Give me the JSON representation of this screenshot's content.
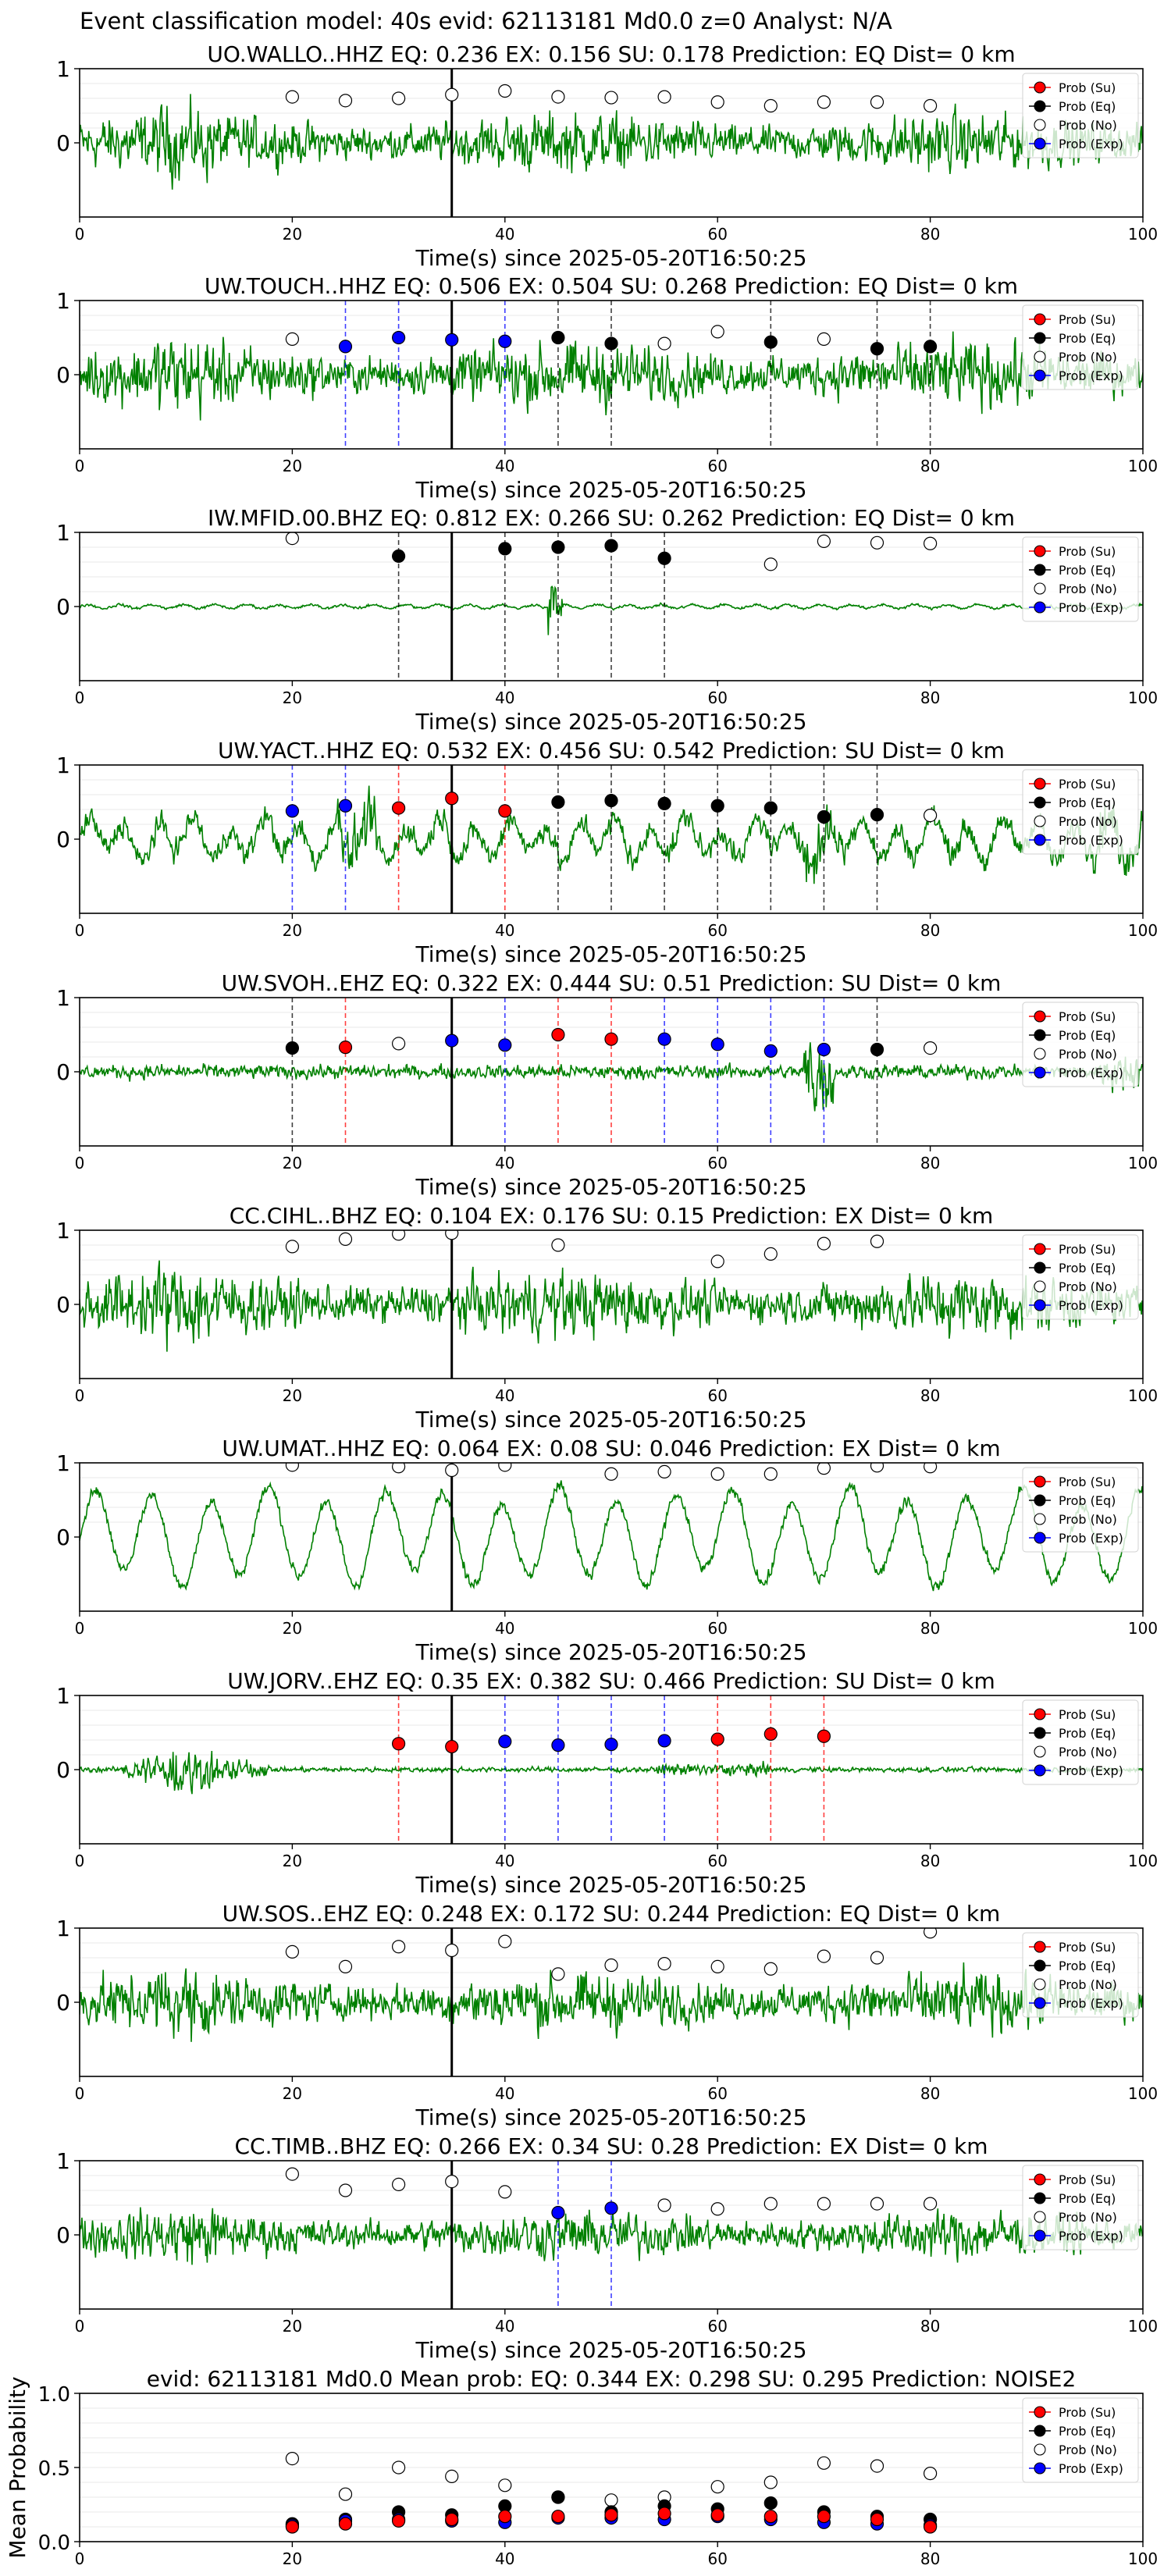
{
  "suptitle": "Event classification model: 40s evid: 62113181 Md0.0 z=0 Analyst: N/A",
  "colors": {
    "trace": "#008000",
    "su": "#ff0000",
    "eq": "#000000",
    "no": "#ffffff",
    "exp": "#0000ff",
    "event_line": "#000000"
  },
  "legend_labels": [
    "Prob (Su)",
    "Prob (Eq)",
    "Prob (No)",
    "Prob (Exp)"
  ],
  "chart_data": [
    {
      "type": "line",
      "title": "UO.WALLO..HHZ   EQ: 0.236  EX: 0.156  SU: 0.178   Prediction: EQ    Dist= 0 km",
      "xlabel": "Time(s) since 2025-05-20T16:50:25",
      "xlim": [
        0,
        100
      ],
      "ylim": [
        -1,
        1
      ],
      "xticks": [
        0,
        20,
        40,
        60,
        80,
        100
      ],
      "yticks": [
        0,
        1
      ],
      "legend": "right",
      "trace_style": "dense-noise",
      "trace_amp": 0.55,
      "event_line_x": 35,
      "dashed": [],
      "series": [
        {
          "name": "Prob (No)",
          "x": [
            20,
            25,
            30,
            35,
            40,
            45,
            50,
            55,
            60,
            65,
            70,
            75,
            80
          ],
          "y": [
            0.62,
            0.57,
            0.6,
            0.65,
            0.7,
            0.62,
            0.61,
            0.62,
            0.55,
            0.5,
            0.55,
            0.55,
            0.5
          ]
        }
      ]
    },
    {
      "type": "line",
      "title": "UW.TOUCH..HHZ   EQ: 0.506  EX: 0.504  SU: 0.268   Prediction: EQ    Dist= 0 km",
      "xlabel": "Time(s) since 2025-05-20T16:50:25",
      "xlim": [
        0,
        100
      ],
      "ylim": [
        -1,
        1
      ],
      "xticks": [
        0,
        20,
        40,
        60,
        80,
        100
      ],
      "yticks": [
        0,
        1
      ],
      "legend": "right",
      "trace_style": "dense-noise",
      "trace_amp": 0.6,
      "event_line_x": 35,
      "dashed": [
        {
          "x": 25,
          "c": "exp"
        },
        {
          "x": 30,
          "c": "exp"
        },
        {
          "x": 40,
          "c": "exp"
        },
        {
          "x": 45,
          "c": "eq"
        },
        {
          "x": 50,
          "c": "eq"
        },
        {
          "x": 65,
          "c": "eq"
        },
        {
          "x": 75,
          "c": "eq"
        },
        {
          "x": 80,
          "c": "eq"
        }
      ],
      "series": [
        {
          "name": "Prob (No)",
          "x": [
            20,
            55,
            60,
            70
          ],
          "y": [
            0.48,
            0.42,
            0.58,
            0.48
          ]
        },
        {
          "name": "Prob (Exp)",
          "x": [
            25,
            30,
            35,
            40
          ],
          "y": [
            0.38,
            0.5,
            0.47,
            0.45
          ]
        },
        {
          "name": "Prob (Eq)",
          "x": [
            45,
            50,
            65,
            75,
            80
          ],
          "y": [
            0.5,
            0.42,
            0.44,
            0.35,
            0.38
          ]
        }
      ]
    },
    {
      "type": "line",
      "title": "IW.MFID.00.BHZ   EQ: 0.812  EX: 0.266  SU: 0.262   Prediction: EQ    Dist= 0 km",
      "xlabel": "Time(s) since 2025-05-20T16:50:25",
      "xlim": [
        0,
        100
      ],
      "ylim": [
        -1,
        1
      ],
      "xticks": [
        0,
        20,
        40,
        60,
        80,
        100
      ],
      "yticks": [
        0,
        1
      ],
      "legend": "right",
      "trace_style": "quiet-spike",
      "trace_amp": 0.05,
      "event_line_x": 35,
      "dashed": [
        {
          "x": 30,
          "c": "eq"
        },
        {
          "x": 40,
          "c": "eq"
        },
        {
          "x": 45,
          "c": "eq"
        },
        {
          "x": 50,
          "c": "eq"
        },
        {
          "x": 55,
          "c": "eq"
        }
      ],
      "series": [
        {
          "name": "Prob (No)",
          "x": [
            20,
            65,
            70,
            75,
            80
          ],
          "y": [
            0.92,
            0.57,
            0.88,
            0.86,
            0.85
          ]
        },
        {
          "name": "Prob (Eq)",
          "x": [
            30,
            40,
            45,
            50,
            55
          ],
          "y": [
            0.68,
            0.78,
            0.8,
            0.82,
            0.65
          ]
        }
      ]
    },
    {
      "type": "line",
      "title": "UW.YACT..HHZ   EQ: 0.532  EX: 0.456  SU: 0.542   Prediction: SU    Dist= 0 km",
      "xlabel": "Time(s) since 2025-05-20T16:50:25",
      "xlim": [
        0,
        100
      ],
      "ylim": [
        -1,
        1
      ],
      "xticks": [
        0,
        20,
        40,
        60,
        80,
        100
      ],
      "yticks": [
        0,
        1
      ],
      "legend": "right",
      "trace_style": "wavy",
      "trace_amp": 0.35,
      "event_line_x": 35,
      "dashed": [
        {
          "x": 20,
          "c": "exp"
        },
        {
          "x": 25,
          "c": "exp"
        },
        {
          "x": 30,
          "c": "su"
        },
        {
          "x": 35,
          "c": "su"
        },
        {
          "x": 40,
          "c": "su"
        },
        {
          "x": 45,
          "c": "eq"
        },
        {
          "x": 50,
          "c": "eq"
        },
        {
          "x": 55,
          "c": "eq"
        },
        {
          "x": 60,
          "c": "eq"
        },
        {
          "x": 65,
          "c": "eq"
        },
        {
          "x": 70,
          "c": "eq"
        },
        {
          "x": 75,
          "c": "eq"
        }
      ],
      "series": [
        {
          "name": "Prob (Exp)",
          "x": [
            20,
            25
          ],
          "y": [
            0.38,
            0.45
          ]
        },
        {
          "name": "Prob (Su)",
          "x": [
            30,
            35,
            40
          ],
          "y": [
            0.42,
            0.55,
            0.38
          ]
        },
        {
          "name": "Prob (Eq)",
          "x": [
            45,
            50,
            55,
            60,
            65,
            70,
            75
          ],
          "y": [
            0.5,
            0.52,
            0.48,
            0.45,
            0.42,
            0.3,
            0.33
          ]
        },
        {
          "name": "Prob (No)",
          "x": [
            80
          ],
          "y": [
            0.32
          ]
        }
      ]
    },
    {
      "type": "line",
      "title": "UW.SVOH..EHZ   EQ: 0.322  EX: 0.444  SU: 0.51   Prediction: SU    Dist= 0 km",
      "xlabel": "Time(s) since 2025-05-20T16:50:25",
      "xlim": [
        0,
        100
      ],
      "ylim": [
        -1,
        1
      ],
      "xticks": [
        0,
        20,
        40,
        60,
        80,
        100
      ],
      "yticks": [
        0,
        1
      ],
      "legend": "right",
      "trace_style": "low-noise",
      "trace_amp": 0.15,
      "event_line_x": 35,
      "dashed": [
        {
          "x": 20,
          "c": "eq"
        },
        {
          "x": 25,
          "c": "su"
        },
        {
          "x": 40,
          "c": "exp"
        },
        {
          "x": 45,
          "c": "su"
        },
        {
          "x": 50,
          "c": "su"
        },
        {
          "x": 55,
          "c": "exp"
        },
        {
          "x": 60,
          "c": "exp"
        },
        {
          "x": 65,
          "c": "exp"
        },
        {
          "x": 70,
          "c": "exp"
        },
        {
          "x": 75,
          "c": "eq"
        }
      ],
      "series": [
        {
          "name": "Prob (Eq)",
          "x": [
            20,
            75
          ],
          "y": [
            0.32,
            0.3
          ]
        },
        {
          "name": "Prob (Su)",
          "x": [
            25,
            45,
            50
          ],
          "y": [
            0.33,
            0.5,
            0.44
          ]
        },
        {
          "name": "Prob (No)",
          "x": [
            30,
            80
          ],
          "y": [
            0.38,
            0.32
          ]
        },
        {
          "name": "Prob (Exp)",
          "x": [
            35,
            40,
            55,
            60,
            65,
            70
          ],
          "y": [
            0.42,
            0.36,
            0.44,
            0.37,
            0.28,
            0.3
          ]
        }
      ]
    },
    {
      "type": "line",
      "title": "CC.CIHL..BHZ   EQ: 0.104  EX: 0.176  SU: 0.15   Prediction: EX    Dist= 0 km",
      "xlabel": "Time(s) since 2025-05-20T16:50:25",
      "xlim": [
        0,
        100
      ],
      "ylim": [
        -1,
        1
      ],
      "xticks": [
        0,
        20,
        40,
        60,
        80,
        100
      ],
      "yticks": [
        0,
        1
      ],
      "legend": "right",
      "trace_style": "dense-noise",
      "trace_amp": 0.6,
      "event_line_x": 35,
      "dashed": [],
      "series": [
        {
          "name": "Prob (No)",
          "x": [
            20,
            25,
            30,
            35,
            45,
            60,
            65,
            70,
            75
          ],
          "y": [
            0.78,
            0.88,
            0.95,
            0.96,
            0.8,
            0.58,
            0.68,
            0.82,
            0.85
          ]
        }
      ]
    },
    {
      "type": "line",
      "title": "UW.UMAT..HHZ   EQ: 0.064  EX: 0.08  SU: 0.046   Prediction: EX    Dist= 0 km",
      "xlabel": "Time(s) since 2025-05-20T16:50:25",
      "xlim": [
        0,
        100
      ],
      "ylim": [
        -1,
        1
      ],
      "xticks": [
        0,
        20,
        40,
        60,
        80,
        100
      ],
      "yticks": [
        0,
        1
      ],
      "legend": "right",
      "trace_style": "big-wave",
      "trace_amp": 0.65,
      "event_line_x": 35,
      "dashed": [],
      "series": [
        {
          "name": "Prob (No)",
          "x": [
            20,
            30,
            35,
            40,
            50,
            55,
            60,
            65,
            70,
            75,
            80
          ],
          "y": [
            0.97,
            0.95,
            0.9,
            0.97,
            0.85,
            0.88,
            0.85,
            0.85,
            0.93,
            0.96,
            0.95
          ]
        }
      ]
    },
    {
      "type": "line",
      "title": "UW.JORV..EHZ   EQ: 0.35  EX: 0.382  SU: 0.466   Prediction: SU    Dist= 0 km",
      "xlabel": "Time(s) since 2025-05-20T16:50:25",
      "xlim": [
        0,
        100
      ],
      "ylim": [
        -1,
        1
      ],
      "xticks": [
        0,
        20,
        40,
        60,
        80,
        100
      ],
      "yticks": [
        0,
        1
      ],
      "legend": "right",
      "trace_style": "early-burst",
      "trace_amp": 0.08,
      "event_line_x": 35,
      "dashed": [
        {
          "x": 30,
          "c": "su"
        },
        {
          "x": 40,
          "c": "exp"
        },
        {
          "x": 45,
          "c": "exp"
        },
        {
          "x": 50,
          "c": "exp"
        },
        {
          "x": 55,
          "c": "exp"
        },
        {
          "x": 60,
          "c": "su"
        },
        {
          "x": 65,
          "c": "su"
        },
        {
          "x": 70,
          "c": "su"
        }
      ],
      "series": [
        {
          "name": "Prob (Su)",
          "x": [
            30,
            35,
            60,
            65,
            70
          ],
          "y": [
            0.35,
            0.31,
            0.41,
            0.48,
            0.45
          ]
        },
        {
          "name": "Prob (Exp)",
          "x": [
            40,
            45,
            50,
            55
          ],
          "y": [
            0.38,
            0.33,
            0.34,
            0.39
          ]
        }
      ]
    },
    {
      "type": "line",
      "title": "UW.SOS..EHZ   EQ: 0.248  EX: 0.172  SU: 0.244   Prediction: EQ    Dist= 0 km",
      "xlabel": "Time(s) since 2025-05-20T16:50:25",
      "xlim": [
        0,
        100
      ],
      "ylim": [
        -1,
        1
      ],
      "xticks": [
        0,
        20,
        40,
        60,
        80,
        100
      ],
      "yticks": [
        0,
        1
      ],
      "legend": "right",
      "trace_style": "dense-noise",
      "trace_amp": 0.55,
      "event_line_x": 35,
      "dashed": [],
      "series": [
        {
          "name": "Prob (No)",
          "x": [
            20,
            25,
            30,
            35,
            40,
            45,
            50,
            55,
            60,
            65,
            70,
            75,
            80
          ],
          "y": [
            0.68,
            0.48,
            0.75,
            0.7,
            0.82,
            0.38,
            0.5,
            0.52,
            0.48,
            0.45,
            0.62,
            0.6,
            0.95
          ]
        }
      ]
    },
    {
      "type": "line",
      "title": "CC.TIMB..BHZ   EQ: 0.266  EX: 0.34  SU: 0.28   Prediction: EX    Dist= 0 km",
      "xlabel": "Time(s) since 2025-05-20T16:50:25",
      "xlim": [
        0,
        100
      ],
      "ylim": [
        -1,
        1
      ],
      "xticks": [
        0,
        20,
        40,
        60,
        80,
        100
      ],
      "yticks": [
        0,
        1
      ],
      "legend": "right",
      "trace_style": "dense-noise",
      "trace_amp": 0.45,
      "event_line_x": 35,
      "dashed": [
        {
          "x": 45,
          "c": "exp"
        },
        {
          "x": 50,
          "c": "exp"
        }
      ],
      "series": [
        {
          "name": "Prob (No)",
          "x": [
            20,
            25,
            30,
            35,
            40,
            55,
            60,
            65,
            70,
            75,
            80
          ],
          "y": [
            0.82,
            0.6,
            0.68,
            0.72,
            0.58,
            0.4,
            0.35,
            0.42,
            0.42,
            0.42,
            0.42
          ]
        },
        {
          "name": "Prob (Exp)",
          "x": [
            45,
            50
          ],
          "y": [
            0.3,
            0.36
          ]
        }
      ]
    },
    {
      "type": "scatter",
      "title": "evid: 62113181  Md0.0   Mean prob:   EQ: 0.344  EX: 0.298  SU: 0.295   Prediction: NOISE2",
      "xlabel": "",
      "ylabel": "Mean Probability",
      "xlim": [
        0,
        100
      ],
      "ylim": [
        0,
        1
      ],
      "xticks": [
        0,
        20,
        40,
        60,
        80,
        100
      ],
      "yticks": [
        0.0,
        0.5,
        1.0
      ],
      "ytick_labels": [
        "0.0",
        "0.5",
        "1.0"
      ],
      "legend": "right",
      "series": [
        {
          "name": "Prob (No)",
          "x": [
            20,
            25,
            30,
            35,
            40,
            45,
            50,
            55,
            60,
            65,
            70,
            75,
            80
          ],
          "y": [
            0.56,
            0.32,
            0.5,
            0.44,
            0.38,
            0.3,
            0.28,
            0.3,
            0.37,
            0.4,
            0.53,
            0.51,
            0.46
          ]
        },
        {
          "name": "Prob (Eq)",
          "x": [
            20,
            25,
            30,
            35,
            40,
            45,
            50,
            55,
            60,
            65,
            70,
            75,
            80
          ],
          "y": [
            0.12,
            0.15,
            0.2,
            0.18,
            0.24,
            0.3,
            0.2,
            0.24,
            0.22,
            0.26,
            0.2,
            0.17,
            0.15
          ]
        },
        {
          "name": "Prob (Exp)",
          "x": [
            20,
            25,
            30,
            35,
            40,
            45,
            50,
            55,
            60,
            65,
            70,
            75,
            80
          ],
          "y": [
            0.11,
            0.14,
            0.15,
            0.14,
            0.13,
            0.16,
            0.16,
            0.15,
            0.17,
            0.15,
            0.13,
            0.12,
            0.11
          ]
        },
        {
          "name": "Prob (Su)",
          "x": [
            20,
            25,
            30,
            35,
            40,
            45,
            50,
            55,
            60,
            65,
            70,
            75,
            80
          ],
          "y": [
            0.1,
            0.12,
            0.14,
            0.15,
            0.17,
            0.17,
            0.18,
            0.19,
            0.18,
            0.17,
            0.17,
            0.15,
            0.1
          ]
        }
      ]
    }
  ]
}
